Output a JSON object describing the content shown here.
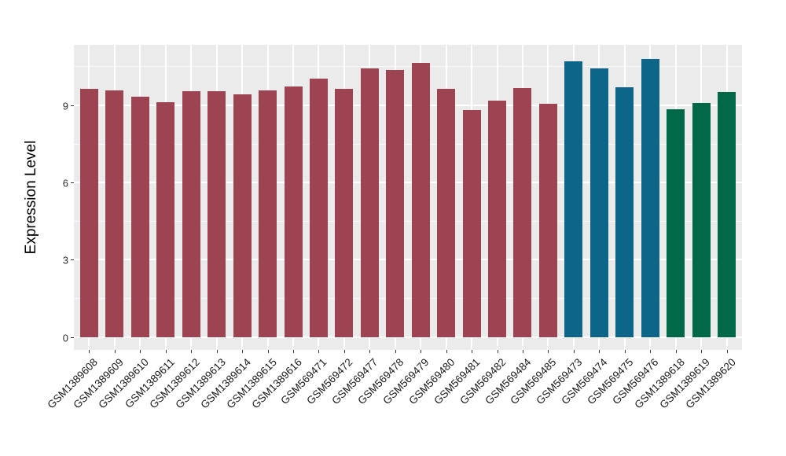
{
  "chart_data": {
    "type": "bar",
    "title": "",
    "xlabel": "",
    "ylabel": "Expression Level",
    "ylim": [
      -0.5,
      11.35
    ],
    "yticks_major": [
      0,
      3,
      6,
      9
    ],
    "yticks_minor": [
      1.5,
      4.5,
      7.5,
      10.5
    ],
    "grid": "white major and minor horizontal lines plus vertical category lines on gray panel",
    "legend_position": "none",
    "categories": [
      "GSM1389608",
      "GSM1389609",
      "GSM1389610",
      "GSM1389611",
      "GSM1389612",
      "GSM1389613",
      "GSM1389614",
      "GSM1389615",
      "GSM1389616",
      "GSM569471",
      "GSM569472",
      "GSM569477",
      "GSM569478",
      "GSM569479",
      "GSM569480",
      "GSM569481",
      "GSM569482",
      "GSM569484",
      "GSM569485",
      "GSM569473",
      "GSM569474",
      "GSM569475",
      "GSM569476",
      "GSM1389618",
      "GSM1389619",
      "GSM1389620"
    ],
    "values": [
      9.65,
      9.57,
      9.33,
      9.13,
      9.56,
      9.54,
      9.44,
      9.58,
      9.74,
      10.05,
      9.64,
      10.43,
      10.36,
      10.64,
      9.65,
      8.8,
      9.17,
      9.66,
      9.07,
      10.7,
      10.42,
      9.69,
      10.81,
      8.85,
      9.1,
      9.51
    ],
    "bar_group_index": [
      0,
      0,
      0,
      0,
      0,
      0,
      0,
      0,
      0,
      0,
      0,
      0,
      0,
      0,
      0,
      0,
      0,
      0,
      0,
      1,
      1,
      1,
      1,
      2,
      2,
      2
    ],
    "group_colors": [
      "#9E4352",
      "#0D6689",
      "#026948"
    ],
    "colors": {
      "panel_bg": "#EBEBEB",
      "grid": "#FFFFFF",
      "axis_tick_text": "#303030",
      "axis_title_text": "#000000",
      "tick_mark": "#333333",
      "background": "#FFFFFF"
    }
  }
}
